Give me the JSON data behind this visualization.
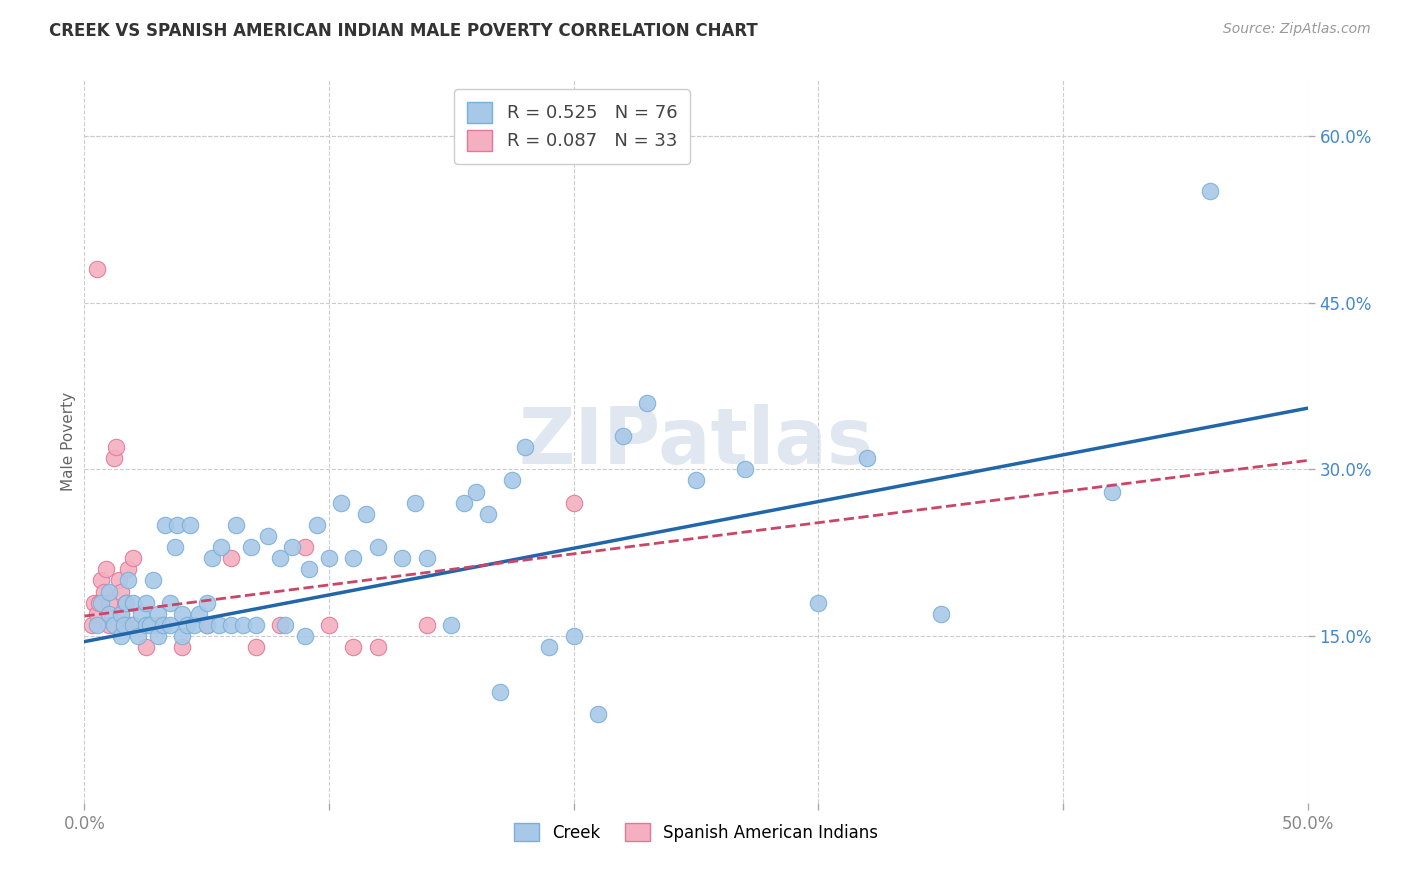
{
  "title": "CREEK VS SPANISH AMERICAN INDIAN MALE POVERTY CORRELATION CHART",
  "source": "Source: ZipAtlas.com",
  "ylabel": "Male Poverty",
  "xlim": [
    0.0,
    0.5
  ],
  "ylim": [
    0.0,
    0.65
  ],
  "xticks": [
    0.0,
    0.1,
    0.2,
    0.3,
    0.4,
    0.5
  ],
  "xtick_labels_sparse": {
    "0": "0.0%",
    "5": "50.0%"
  },
  "yticks": [
    0.15,
    0.3,
    0.45,
    0.6
  ],
  "ytick_labels": [
    "15.0%",
    "30.0%",
    "45.0%",
    "60.0%"
  ],
  "legend_labels": [
    "Creek",
    "Spanish American Indians"
  ],
  "creek_R": "0.525",
  "creek_N": "76",
  "sai_R": "0.087",
  "sai_N": "33",
  "creek_color": "#a8c8e8",
  "creek_edge_color": "#7ab0d8",
  "creek_line_color": "#2266aa",
  "sai_color": "#f4b0c0",
  "sai_edge_color": "#e07898",
  "sai_line_color": "#cc4466",
  "watermark_text": "ZIPatlas",
  "watermark_color": "#ccd8e8",
  "background_color": "#ffffff",
  "grid_color": "#cccccc",
  "title_color": "#333333",
  "source_color": "#999999",
  "ylabel_color": "#666666",
  "right_tick_color": "#4488cc",
  "bottom_tick_color": "#888888",
  "creek_x": [
    0.005,
    0.007,
    0.01,
    0.01,
    0.012,
    0.015,
    0.015,
    0.016,
    0.017,
    0.018,
    0.02,
    0.02,
    0.022,
    0.023,
    0.025,
    0.025,
    0.027,
    0.028,
    0.03,
    0.03,
    0.032,
    0.033,
    0.035,
    0.035,
    0.037,
    0.038,
    0.04,
    0.04,
    0.042,
    0.043,
    0.045,
    0.047,
    0.05,
    0.05,
    0.052,
    0.055,
    0.056,
    0.06,
    0.062,
    0.065,
    0.068,
    0.07,
    0.075,
    0.08,
    0.082,
    0.085,
    0.09,
    0.092,
    0.095,
    0.1,
    0.105,
    0.11,
    0.115,
    0.12,
    0.13,
    0.135,
    0.14,
    0.15,
    0.155,
    0.16,
    0.165,
    0.17,
    0.175,
    0.18,
    0.19,
    0.2,
    0.21,
    0.22,
    0.23,
    0.25,
    0.27,
    0.3,
    0.32,
    0.35,
    0.42,
    0.46
  ],
  "creek_y": [
    0.16,
    0.18,
    0.17,
    0.19,
    0.16,
    0.15,
    0.17,
    0.16,
    0.18,
    0.2,
    0.16,
    0.18,
    0.15,
    0.17,
    0.16,
    0.18,
    0.16,
    0.2,
    0.15,
    0.17,
    0.16,
    0.25,
    0.16,
    0.18,
    0.23,
    0.25,
    0.15,
    0.17,
    0.16,
    0.25,
    0.16,
    0.17,
    0.16,
    0.18,
    0.22,
    0.16,
    0.23,
    0.16,
    0.25,
    0.16,
    0.23,
    0.16,
    0.24,
    0.22,
    0.16,
    0.23,
    0.15,
    0.21,
    0.25,
    0.22,
    0.27,
    0.22,
    0.26,
    0.23,
    0.22,
    0.27,
    0.22,
    0.16,
    0.27,
    0.28,
    0.26,
    0.1,
    0.29,
    0.32,
    0.14,
    0.15,
    0.08,
    0.33,
    0.36,
    0.29,
    0.3,
    0.18,
    0.31,
    0.17,
    0.28,
    0.55
  ],
  "sai_x": [
    0.003,
    0.004,
    0.005,
    0.005,
    0.006,
    0.007,
    0.008,
    0.009,
    0.01,
    0.01,
    0.012,
    0.013,
    0.014,
    0.015,
    0.015,
    0.016,
    0.017,
    0.018,
    0.019,
    0.02,
    0.025,
    0.03,
    0.04,
    0.05,
    0.06,
    0.07,
    0.08,
    0.09,
    0.1,
    0.11,
    0.12,
    0.14,
    0.2
  ],
  "sai_y": [
    0.16,
    0.18,
    0.17,
    0.48,
    0.18,
    0.2,
    0.19,
    0.21,
    0.16,
    0.18,
    0.31,
    0.32,
    0.2,
    0.17,
    0.19,
    0.16,
    0.18,
    0.21,
    0.16,
    0.22,
    0.14,
    0.16,
    0.14,
    0.16,
    0.22,
    0.14,
    0.16,
    0.23,
    0.16,
    0.14,
    0.14,
    0.16,
    0.27
  ],
  "creek_trend_x": [
    0.0,
    0.5
  ],
  "creek_trend_y": [
    0.145,
    0.355
  ],
  "sai_trend_x": [
    0.0,
    0.5
  ],
  "sai_trend_y": [
    0.168,
    0.308
  ]
}
